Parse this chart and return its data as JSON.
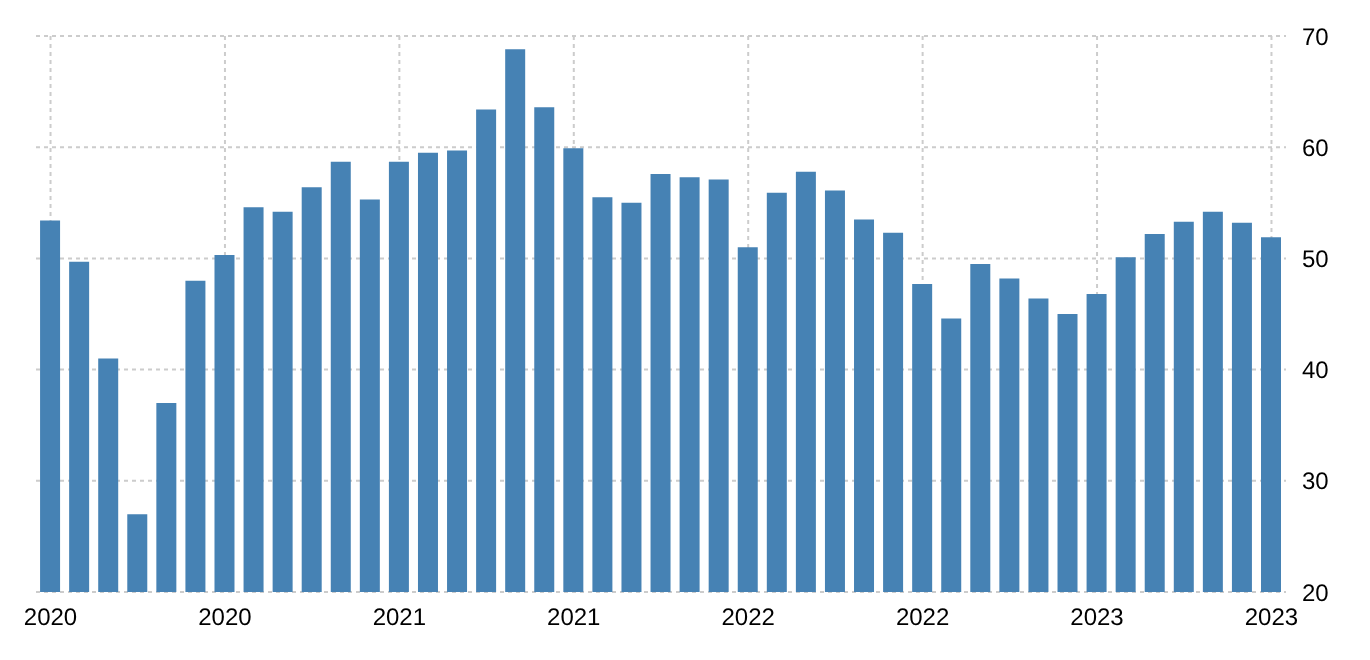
{
  "chart_data": {
    "type": "bar",
    "categories": [
      "2020",
      null,
      null,
      null,
      null,
      null,
      "2020",
      null,
      null,
      null,
      null,
      null,
      "2021",
      null,
      null,
      null,
      null,
      null,
      "2021",
      null,
      null,
      null,
      null,
      null,
      "2022",
      null,
      null,
      null,
      null,
      null,
      "2022",
      null,
      null,
      null,
      null,
      null,
      "2023",
      null,
      null,
      null,
      null,
      null,
      "2023"
    ],
    "values": [
      53.4,
      49.7,
      41,
      27,
      37,
      48,
      50.3,
      54.6,
      54.2,
      56.4,
      58.7,
      55.3,
      58.7,
      59.5,
      59.7,
      63.4,
      68.8,
      63.6,
      59.9,
      55.5,
      55,
      57.6,
      57.3,
      57.1,
      51,
      55.9,
      57.8,
      56.1,
      53.5,
      52.3,
      47.7,
      44.6,
      49.5,
      48.2,
      46.4,
      45,
      46.8,
      50.1,
      52.2,
      53.3,
      54.2,
      53.2,
      51.9
    ],
    "color": "#4682b4",
    "ylim": [
      20,
      70
    ],
    "yticks": [
      20,
      30,
      40,
      50,
      60,
      70
    ],
    "grid": true
  }
}
